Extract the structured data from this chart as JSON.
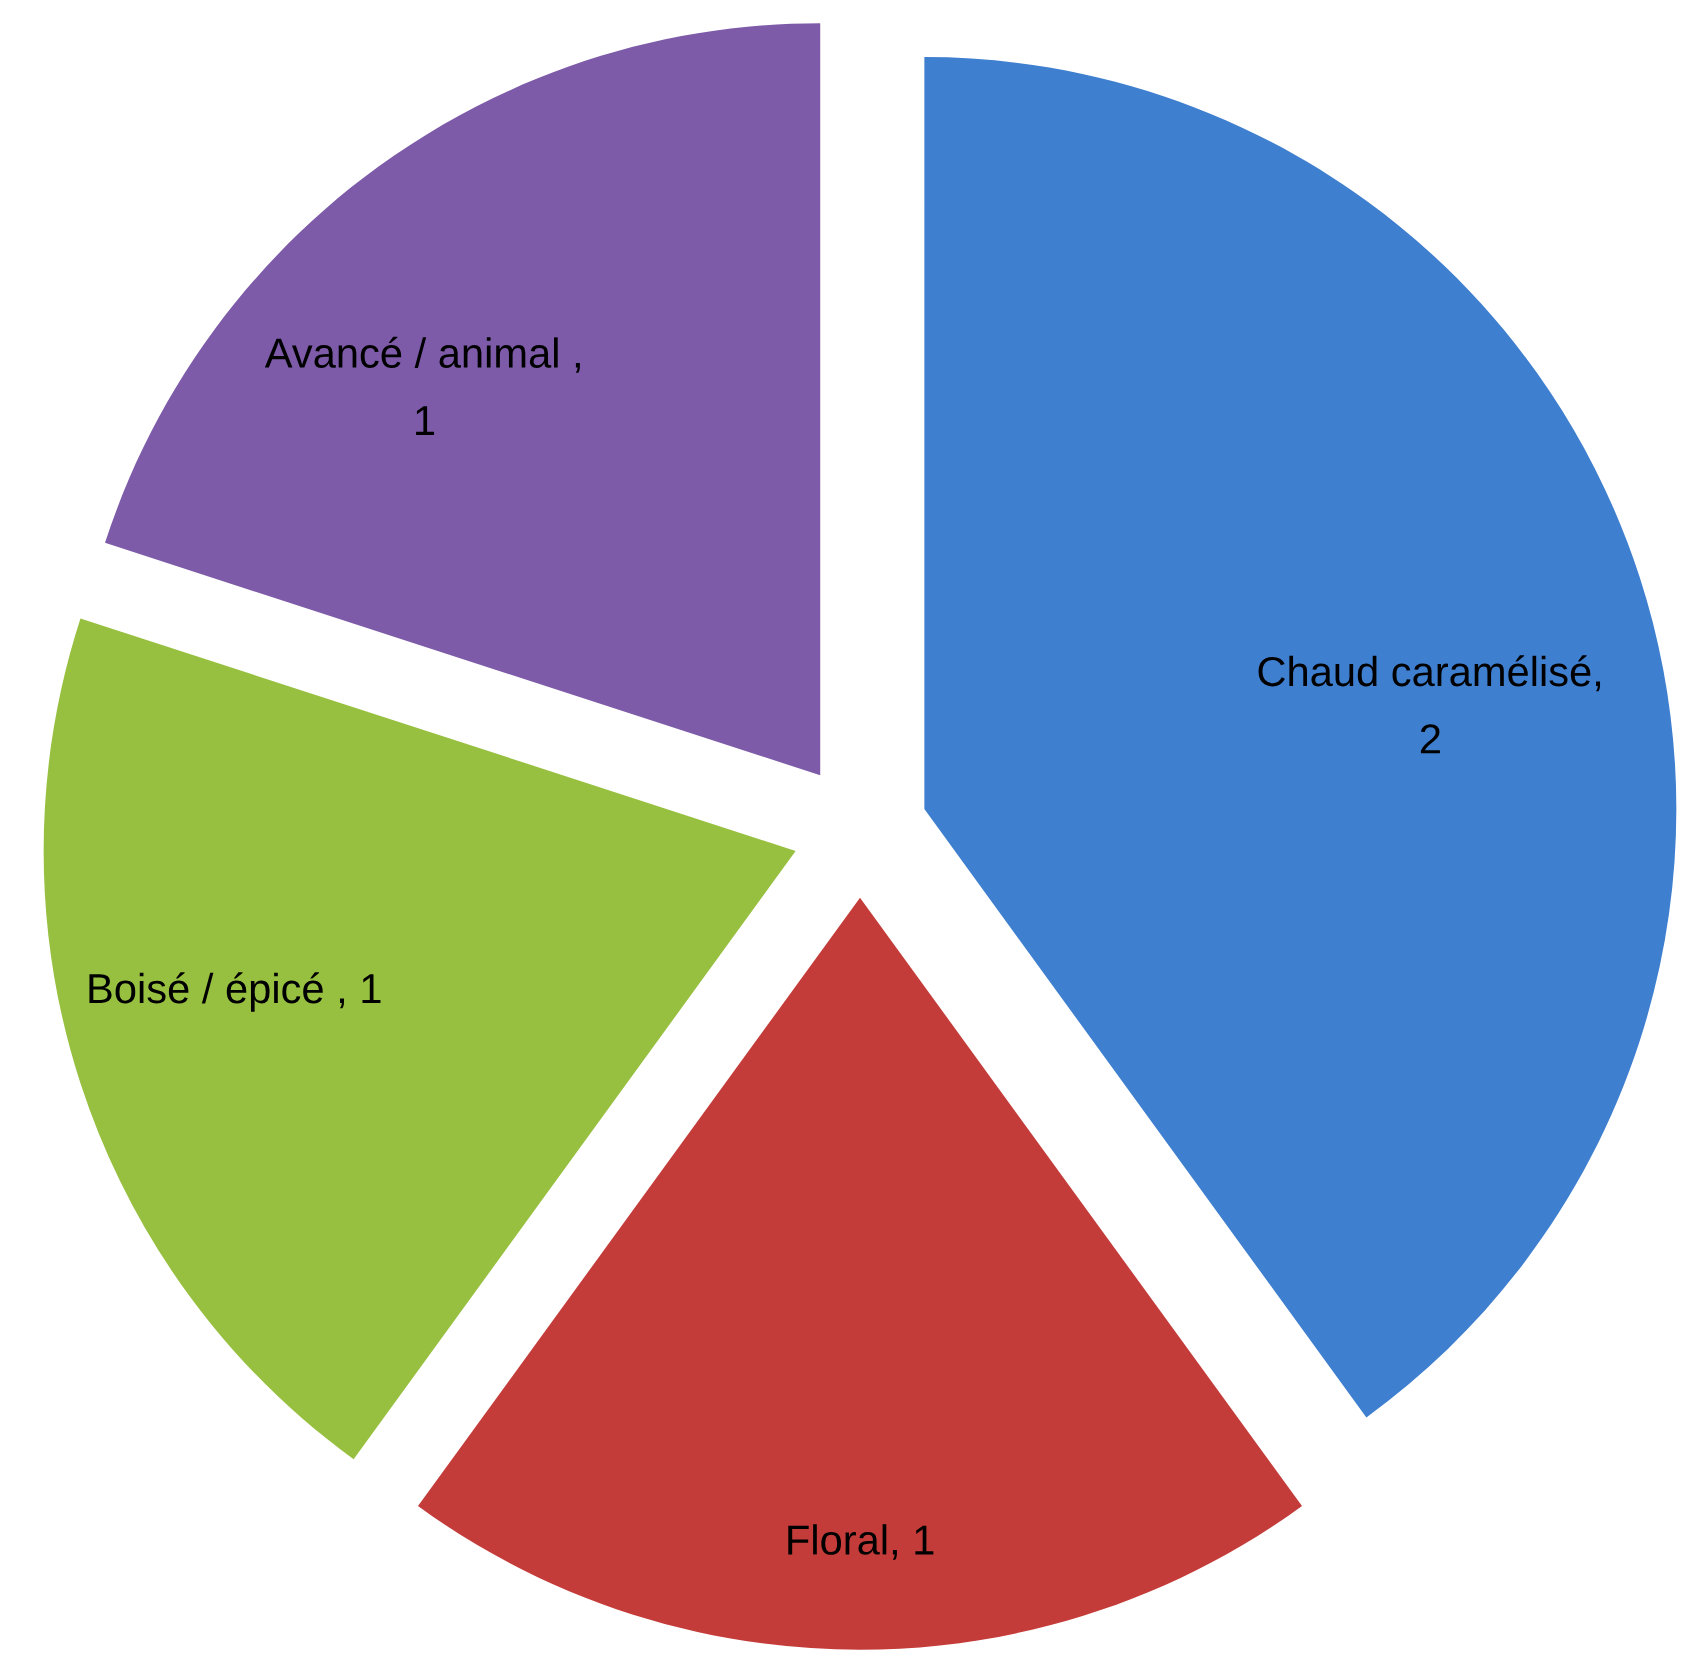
{
  "chart_data": {
    "type": "pie",
    "categories": [
      "Chaud caramélisé",
      "Floral",
      "Boisé / épicé",
      "Avancé / animal"
    ],
    "values": [
      2,
      1,
      1,
      1
    ],
    "colors": [
      "#3f7fcf",
      "#c43c39",
      "#98c040",
      "#7d5ba8"
    ],
    "value_labels": [
      ",\n2",
      ", 1",
      " , 1",
      " ,\n1"
    ]
  }
}
